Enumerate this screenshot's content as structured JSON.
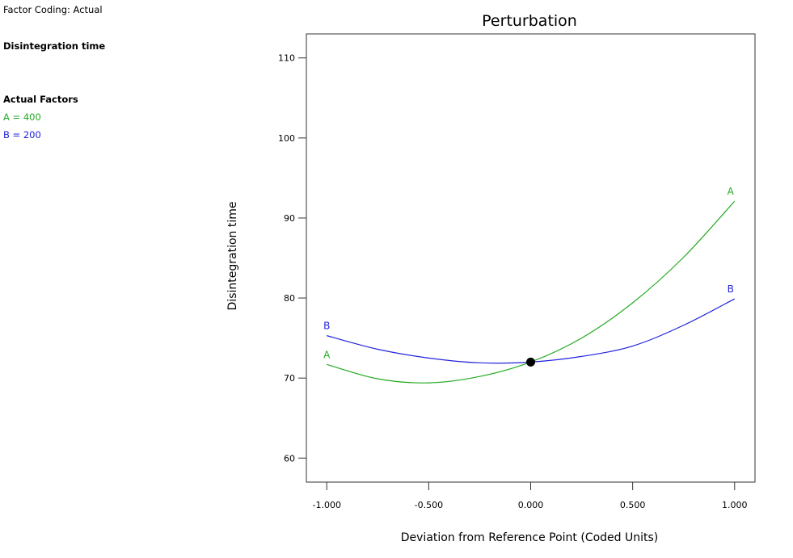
{
  "side_panel": {
    "factor_coding": "Factor Coding: Actual",
    "response_name": "Disintegration time",
    "actual_factors_header": "Actual Factors",
    "factor_a": "A = 400",
    "factor_b": "B = 200",
    "color_a": "#22aa22",
    "color_b": "#2222dd"
  },
  "chart_data": {
    "type": "line",
    "title": "Perturbation",
    "xlabel": "Deviation from Reference Point (Coded Units)",
    "ylabel": "Disintegration time",
    "xlim": [
      -1.1,
      1.1
    ],
    "ylim": [
      57,
      113
    ],
    "x_ticks": [
      -1.0,
      -0.5,
      0.0,
      0.5,
      1.0
    ],
    "x_tick_labels": [
      "-1.000",
      "-0.500",
      "0.000",
      "0.500",
      "1.000"
    ],
    "y_ticks": [
      60,
      70,
      80,
      90,
      100,
      110
    ],
    "y_tick_labels": [
      "60",
      "70",
      "80",
      "90",
      "100",
      "110"
    ],
    "series": [
      {
        "name": "A",
        "color": "#22aa22",
        "x": [
          -1.0,
          -0.75,
          -0.5,
          -0.25,
          0.0,
          0.25,
          0.5,
          0.75,
          1.0
        ],
        "y": [
          71.7,
          69.9,
          69.4,
          70.2,
          72.0,
          75.0,
          79.4,
          85.1,
          92.1
        ]
      },
      {
        "name": "B",
        "color": "#2222dd",
        "x": [
          -1.0,
          -0.75,
          -0.5,
          -0.25,
          0.0,
          0.25,
          0.5,
          0.75,
          1.0
        ],
        "y": [
          75.3,
          73.6,
          72.5,
          71.9,
          72.0,
          72.7,
          74.0,
          76.6,
          79.9
        ]
      }
    ],
    "reference_point": {
      "x": 0.0,
      "y": 72.0
    },
    "grid": false
  }
}
